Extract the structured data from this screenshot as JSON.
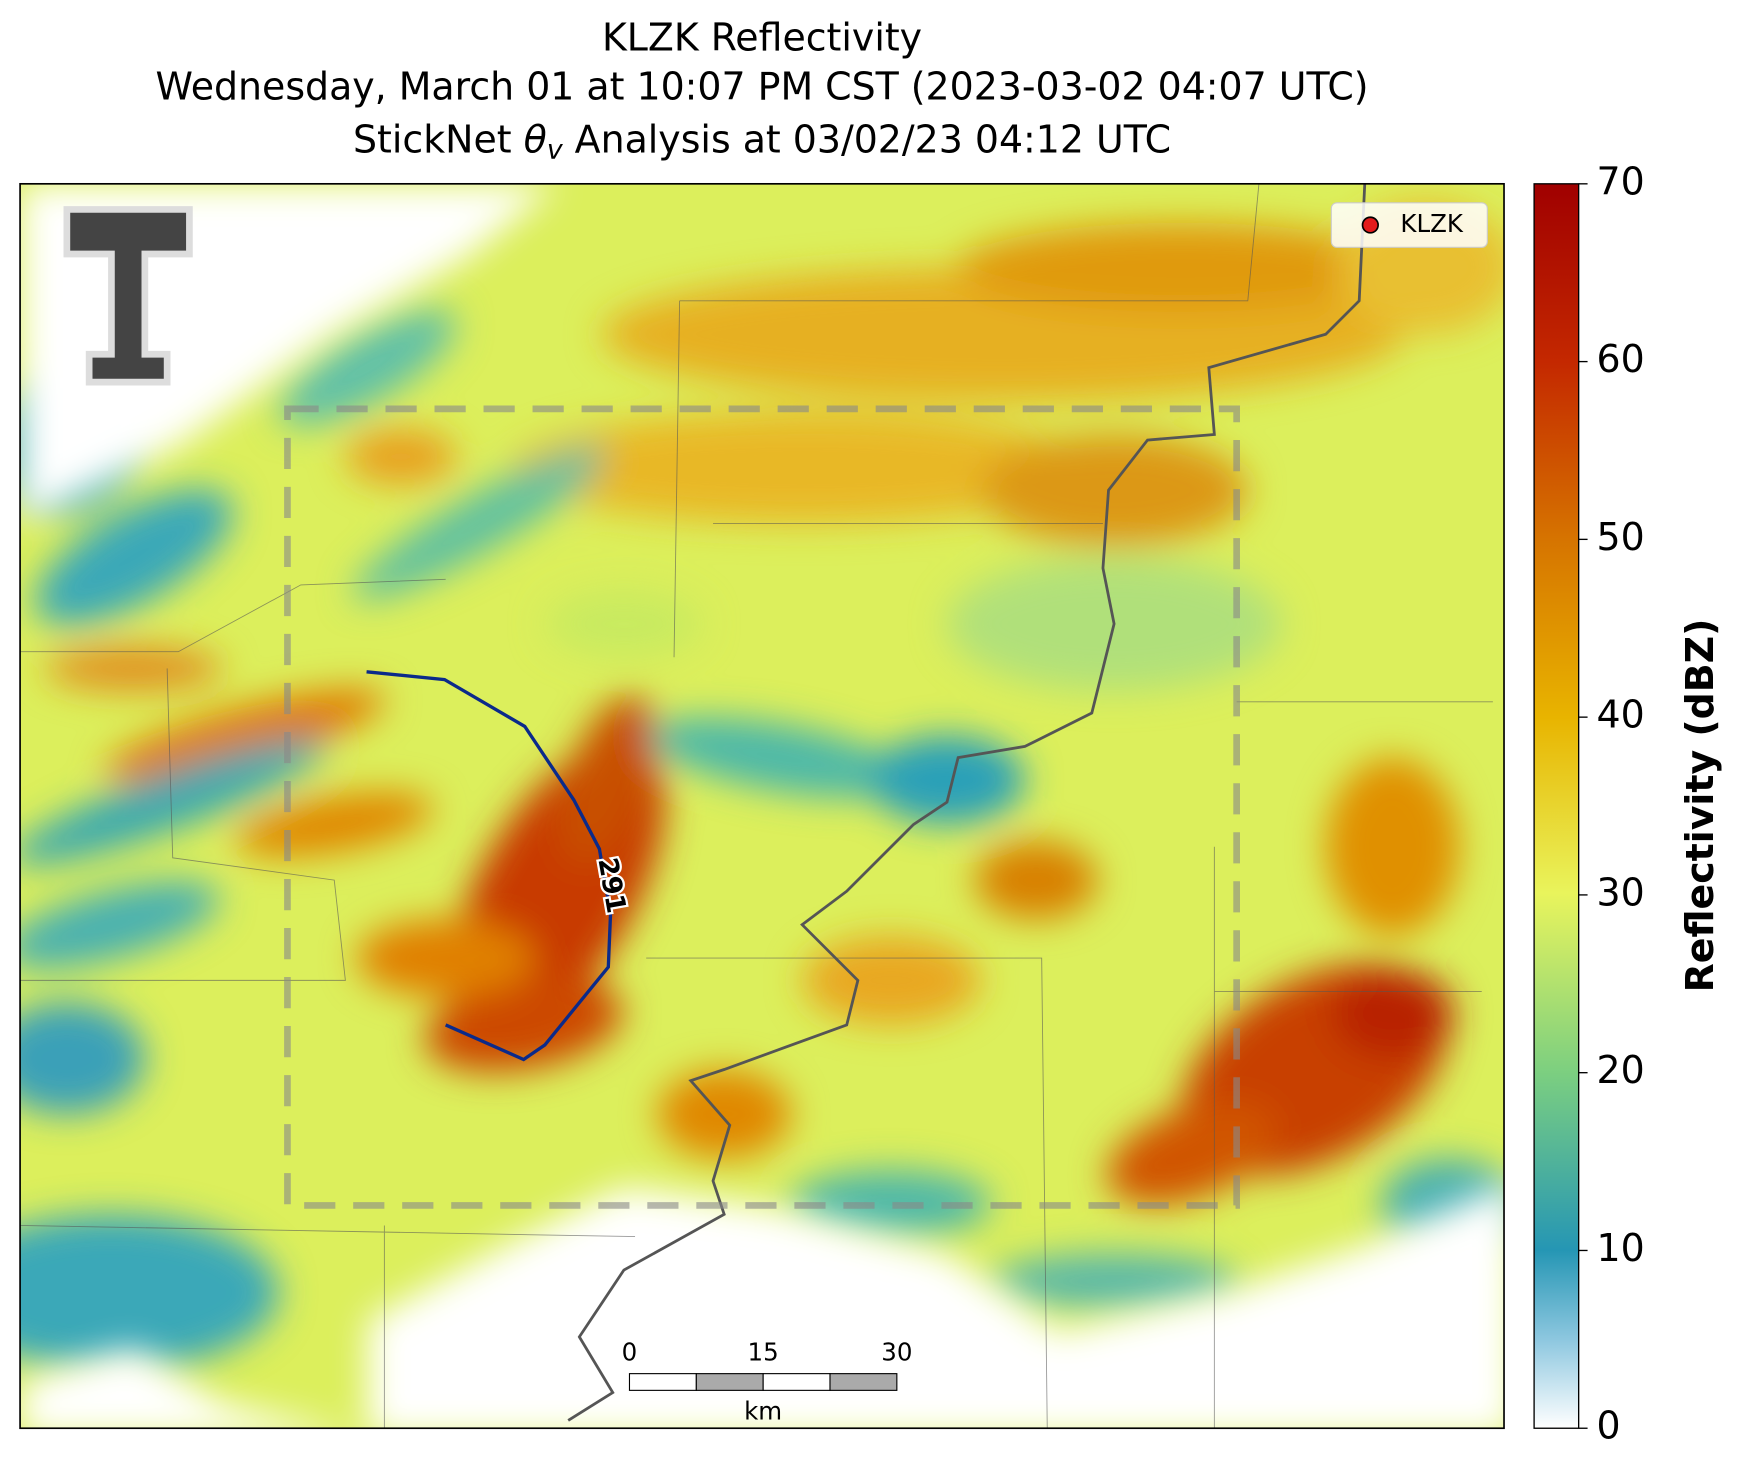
{
  "title": "KLZK Reflectivity",
  "subtitle": "Wednesday, March 01 at 10:07 PM CST (2023-03-02 04:07 UTC)",
  "analysis": {
    "prefix": "StickNet ",
    "symbol": "θ",
    "subscript": "v",
    "suffix": " Analysis at 03/02/23 04:12 UTC"
  },
  "colorbar": {
    "label": "Reflectivity (dBZ)",
    "lim": [
      0,
      70
    ],
    "ticks": [
      0,
      10,
      20,
      30,
      40,
      50,
      60,
      70
    ]
  },
  "legend": {
    "label": "KLZK",
    "color": "#e31a1c"
  },
  "contour": {
    "label": "291",
    "color": "#0b2a8a"
  },
  "scale_bar": {
    "ticks": [
      0,
      15,
      30
    ],
    "unit": "km"
  }
}
